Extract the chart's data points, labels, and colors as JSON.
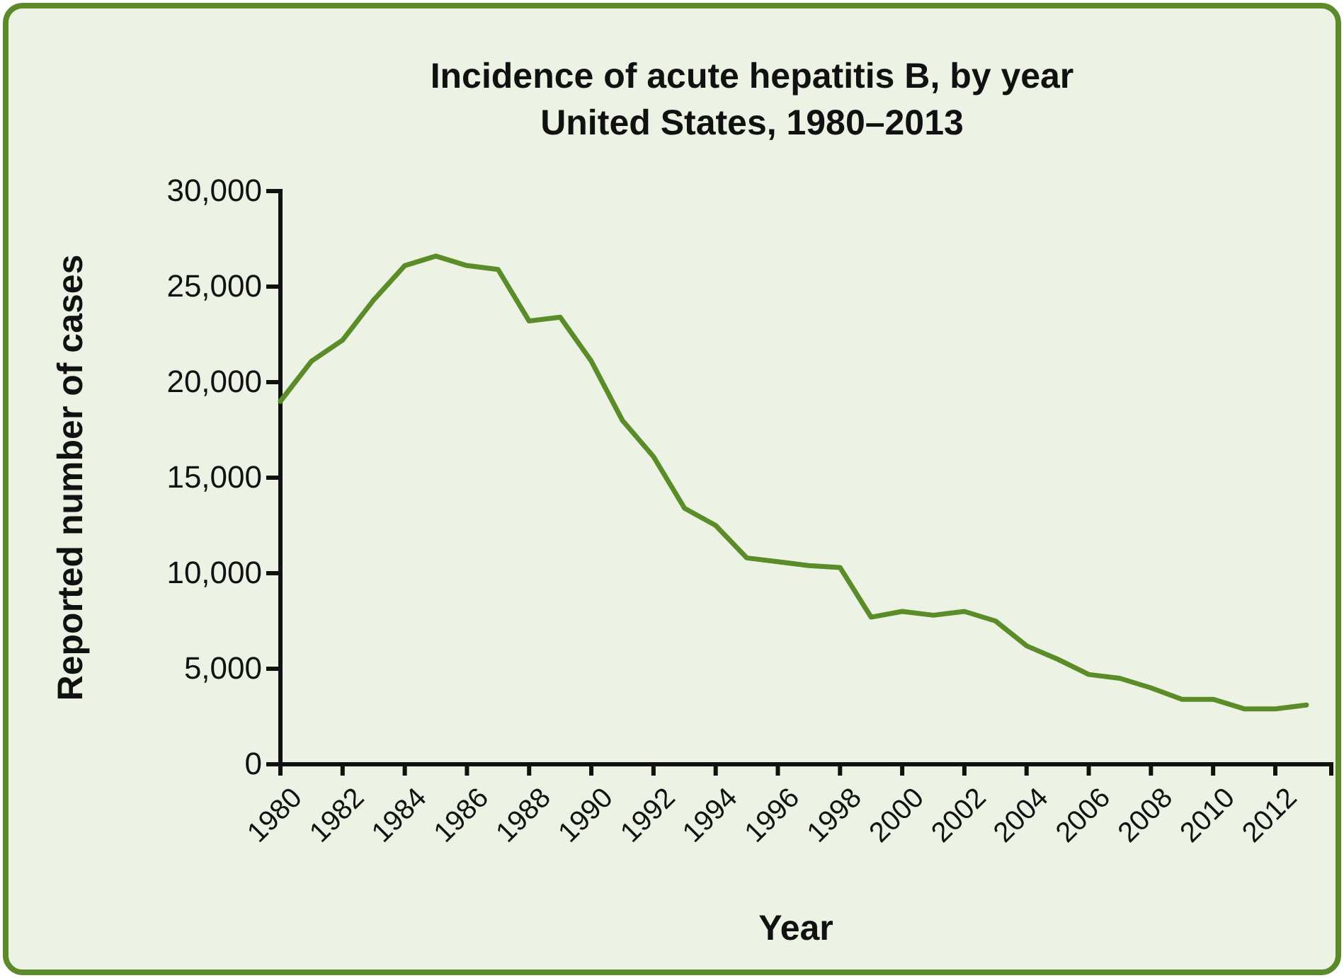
{
  "chart_data": {
    "type": "line",
    "title": "Incidence of acute hepatitis B, by year\nUnited States, 1980–2013",
    "xlabel": "Year",
    "ylabel": "Reported number of cases",
    "x": [
      1980,
      1981,
      1982,
      1983,
      1984,
      1985,
      1986,
      1987,
      1988,
      1989,
      1990,
      1991,
      1992,
      1993,
      1994,
      1995,
      1996,
      1997,
      1998,
      1999,
      2000,
      2001,
      2002,
      2003,
      2004,
      2005,
      2006,
      2007,
      2008,
      2009,
      2010,
      2011,
      2012,
      2013
    ],
    "series": [
      {
        "color": "#5b8c2a",
        "values": [
          19000,
          21100,
          22200,
          24300,
          26100,
          26600,
          26100,
          25900,
          23200,
          23400,
          21100,
          18000,
          16100,
          13400,
          12500,
          10800,
          10600,
          10400,
          10300,
          7700,
          8000,
          7800,
          8000,
          7500,
          6200,
          5500,
          4700,
          4500,
          4000,
          3400,
          3400,
          2900,
          2900,
          3100
        ]
      }
    ],
    "xlim": [
      1980,
      2013.8
    ],
    "xticks": [
      1980,
      1982,
      1984,
      1986,
      1988,
      1990,
      1992,
      1994,
      1996,
      1998,
      2000,
      2002,
      2004,
      2006,
      2008,
      2010,
      2012
    ],
    "ylim": [
      0,
      30000
    ],
    "yticks": [
      {
        "value": 0,
        "label": "0"
      },
      {
        "value": 5000,
        "label": "5,000"
      },
      {
        "value": 10000,
        "label": "10,000"
      },
      {
        "value": 15000,
        "label": "15,000"
      },
      {
        "value": 20000,
        "label": "20,000"
      },
      {
        "value": 25000,
        "label": "25,000"
      },
      {
        "value": 30000,
        "label": "30,000"
      }
    ],
    "grid": false,
    "marker": "none",
    "line_style": "solid"
  }
}
